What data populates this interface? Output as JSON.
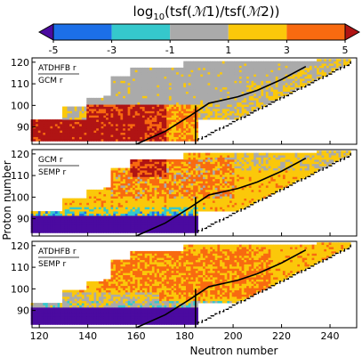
{
  "chart_data": {
    "type": "heatmap",
    "colorbar": {
      "title": "log10(tsf(M1)/tsf(M2))",
      "ticks": [
        "-5",
        "-3",
        "-1",
        "1",
        "3",
        "5"
      ],
      "bins": [
        {
          "from": -5,
          "to": -3,
          "color": "#1c6fe8"
        },
        {
          "from": -3,
          "to": -1,
          "color": "#35c8cc"
        },
        {
          "from": -1,
          "to": 1,
          "color": "#aaaaaa"
        },
        {
          "from": 1,
          "to": 3,
          "color": "#fbc80a"
        },
        {
          "from": 3,
          "to": 5,
          "color": "#f86a10"
        }
      ],
      "under_color": "#4b0aa0",
      "over_color": "#b01414"
    },
    "xlabel": "Neutron number",
    "ylabel": "Proton number",
    "xlim": [
      117,
      251
    ],
    "ylim": [
      82,
      122
    ],
    "xticks": [
      120,
      140,
      160,
      180,
      200,
      220,
      240
    ],
    "yticks": [
      90,
      100,
      110,
      120
    ],
    "panels": [
      {
        "label_top": "ATDHFB r",
        "label_bottom": "GCM r",
        "regions": [
          {
            "class": "over",
            "description": "Z 84-93, N 117-163"
          },
          {
            "class": "over",
            "description": "Z 93-100, N 140-172"
          },
          {
            "class": "3to5",
            "description": "Z 88-100, N 155-185"
          },
          {
            "class": "-1to1",
            "description": "upper band Z 100-120, N 150-240"
          },
          {
            "class": "1to3",
            "description": "scattered near drip line"
          }
        ]
      },
      {
        "label_top": "GCM r",
        "label_bottom": "SEMP r",
        "regions": [
          {
            "class": "under",
            "description": "Z 84-92, N 117-185"
          },
          {
            "class": "-3to-1",
            "description": "Z 92-95 band"
          },
          {
            "class": "1to3",
            "description": "bulk Z 95-120"
          },
          {
            "class": "3to5",
            "description": "Z 100-118, N 150-200"
          },
          {
            "class": "over",
            "description": "Z 110-117, N 158-172"
          }
        ]
      },
      {
        "label_top": "ATDHFB r",
        "label_bottom": "SEMP r",
        "regions": [
          {
            "class": "under",
            "description": "Z 84-93, N 117-185"
          },
          {
            "class": "-1to1",
            "description": "Z 92-98 band"
          },
          {
            "class": "3to5",
            "description": "Z 96-118, N 145-215"
          },
          {
            "class": "1to3",
            "description": "background up to Z 120"
          }
        ]
      }
    ],
    "grid": false
  }
}
